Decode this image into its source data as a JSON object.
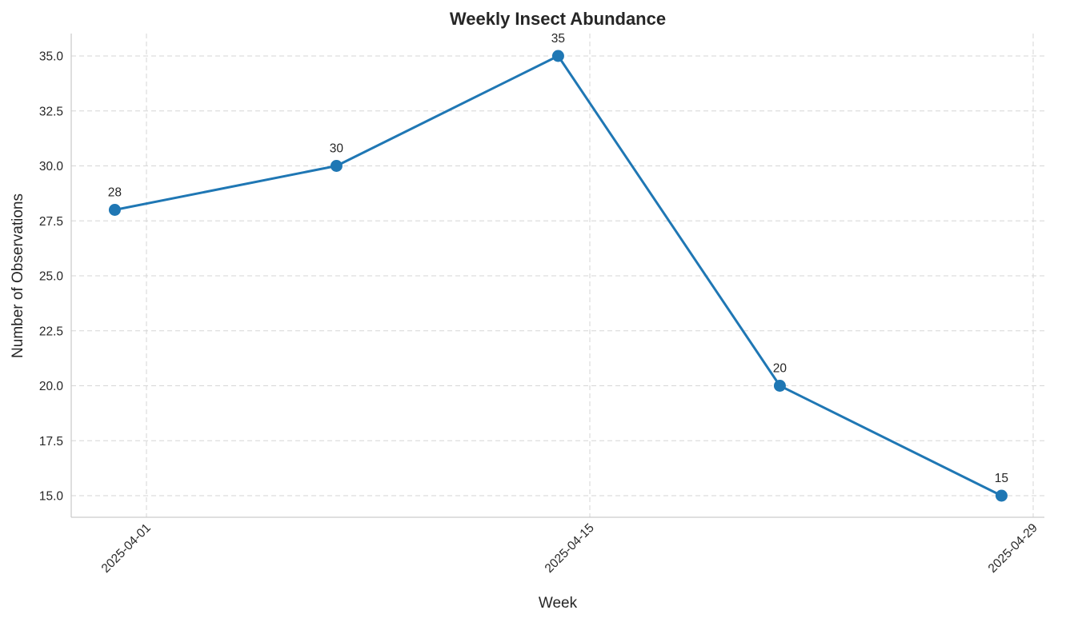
{
  "chart_data": {
    "type": "line",
    "title": "Weekly Insect Abundance",
    "xlabel": "Week",
    "ylabel": "Number of Observations",
    "x": [
      "2025-03-31",
      "2025-04-07",
      "2025-04-14",
      "2025-04-21",
      "2025-04-28"
    ],
    "series": [
      {
        "name": "Observations",
        "values": [
          28,
          30,
          35,
          20,
          15
        ],
        "color": "#1f77b4",
        "marker": "circle",
        "data_labels": [
          "28",
          "30",
          "35",
          "20",
          "15"
        ]
      }
    ],
    "ylim": [
      14.0,
      36.0
    ],
    "xlim": [
      "2025-03-30",
      "2025-04-29"
    ],
    "yticks": [
      15.0,
      17.5,
      20.0,
      22.5,
      25.0,
      27.5,
      30.0,
      32.5,
      35.0
    ],
    "ytick_labels": [
      "15.0",
      "17.5",
      "20.0",
      "22.5",
      "25.0",
      "27.5",
      "30.0",
      "32.5",
      "35.0"
    ],
    "xticks": [
      "2025-04-01",
      "2025-04-15",
      "2025-04-29"
    ],
    "xtick_labels": [
      "2025-04-01",
      "2025-04-15",
      "2025-04-29"
    ],
    "xtick_rotation": 45,
    "grid": true,
    "grid_style": "dashed",
    "legend": null,
    "spines": {
      "top": false,
      "right": false,
      "left": true,
      "bottom": true
    }
  }
}
